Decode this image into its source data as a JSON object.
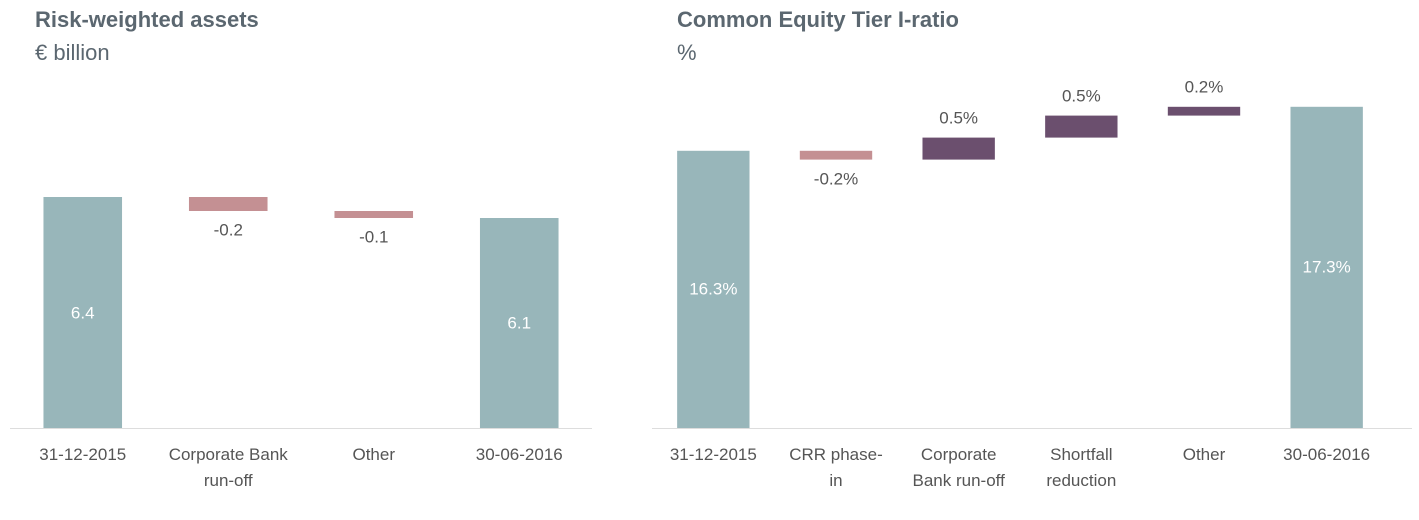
{
  "chart_data": [
    {
      "type": "waterfall",
      "title": "Risk-weighted assets",
      "subtitle": "€ billion",
      "categories": [
        "31-12-2015",
        "Corporate Bank run-off",
        "Other",
        "30-06-2016"
      ],
      "values": [
        6.4,
        -0.2,
        -0.1,
        6.1
      ],
      "ylim": [
        3.1,
        7.5
      ],
      "colors": {
        "total": "#98b6ba",
        "increase": "#6b4f6e",
        "decrease": "#c49093"
      }
    },
    {
      "type": "waterfall",
      "title": "Common Equity Tier I-ratio",
      "subtitle": "%",
      "categories": [
        "31-12-2015",
        "CRR phase-in",
        "Corporate Bank run-off",
        "Shortfall reduction",
        "Other",
        "30-06-2016"
      ],
      "values": [
        16.3,
        -0.2,
        0.5,
        0.5,
        0.2,
        17.3
      ],
      "value_labels": [
        "16.3%",
        "-0.2%",
        "0.5%",
        "0.5%",
        "0.2%",
        "17.3%"
      ],
      "ylim": [
        10,
        17.5
      ],
      "colors": {
        "total": "#98b6ba",
        "increase": "#6b4f6e",
        "decrease": "#c49093"
      }
    }
  ]
}
